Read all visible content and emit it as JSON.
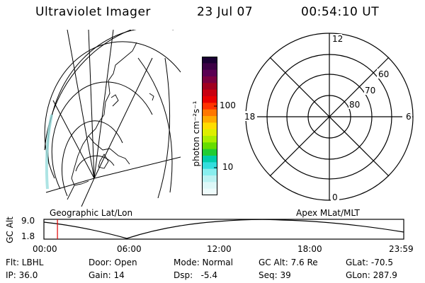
{
  "header": {
    "title": "Ultraviolet Imager",
    "date": "23 Jul 07",
    "time": "00:54:10 UT"
  },
  "geo_panel": {
    "label": "Geographic Lat/Lon"
  },
  "apex_panel": {
    "label": "Apex MLat/MLT",
    "mlt_labels": {
      "top": "12",
      "right": "6",
      "bottom": "0",
      "left": "18"
    },
    "lat_labels": [
      "60",
      "70",
      "80"
    ]
  },
  "colorbar": {
    "unit_label": "photon cm⁻²s⁻¹",
    "tick_100": "100",
    "tick_10": "10",
    "colors": [
      "#1a0033",
      "#3c0045",
      "#5a0052",
      "#7a0040",
      "#a00020",
      "#c80010",
      "#e80000",
      "#ff3300",
      "#ff7700",
      "#ffaa00",
      "#ffdd00",
      "#ddee00",
      "#aaee00",
      "#66dd00",
      "#22cc33",
      "#00ccaa",
      "#33dddd",
      "#88eeee",
      "#bbf2f2",
      "#ddf8f8",
      "#eefcfc"
    ]
  },
  "timeline": {
    "ylabel": "GC Alt",
    "y_ticks": [
      "9.0",
      "1.8"
    ],
    "x_ticks": [
      "00:00",
      "06:00",
      "12:00",
      "18:00",
      "23:59"
    ],
    "marker_time": "00:54"
  },
  "info": {
    "filter": "Flt: LBHL",
    "door": "Door: Open",
    "mode": "Mode: Normal",
    "gc_alt": "GC Alt: 7.6 Re",
    "glat": "GLat: -70.5",
    "ip": "IP: 36.0",
    "gain": "Gain: 14",
    "dsp": "Dsp:   -5.4",
    "seq": "Seq: 39",
    "glon": "GLon: 287.9"
  }
}
